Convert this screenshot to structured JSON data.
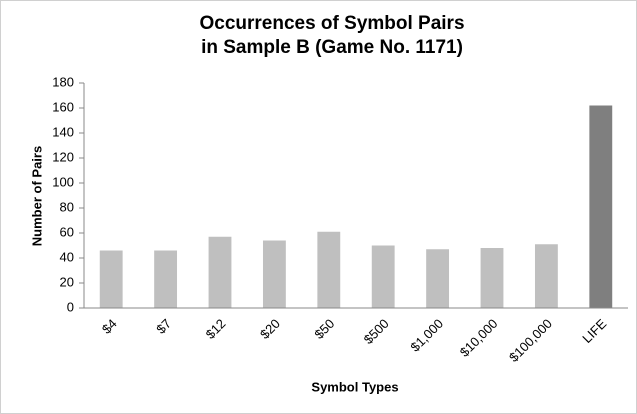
{
  "chart_data": {
    "type": "bar",
    "title": [
      "Occurrences of Symbol Pairs",
      "in Sample B (Game No. 1171)"
    ],
    "x_label": "Symbol Types",
    "y_label": "Number of Pairs",
    "categories": [
      "$4",
      "$7",
      "$12",
      "$20",
      "$50",
      "$500",
      "$1,000",
      "$10,000",
      "$100,000",
      "LIFE"
    ],
    "values": [
      46,
      46,
      57,
      54,
      61,
      50,
      47,
      48,
      51,
      162
    ],
    "colors": [
      "#bfbfbf",
      "#bfbfbf",
      "#bfbfbf",
      "#bfbfbf",
      "#bfbfbf",
      "#bfbfbf",
      "#bfbfbf",
      "#bfbfbf",
      "#bfbfbf",
      "#7f7f7f"
    ],
    "ylim": [
      0,
      180
    ],
    "yticks": [
      0,
      20,
      40,
      60,
      80,
      100,
      120,
      140,
      160,
      180
    ],
    "grid": false
  }
}
